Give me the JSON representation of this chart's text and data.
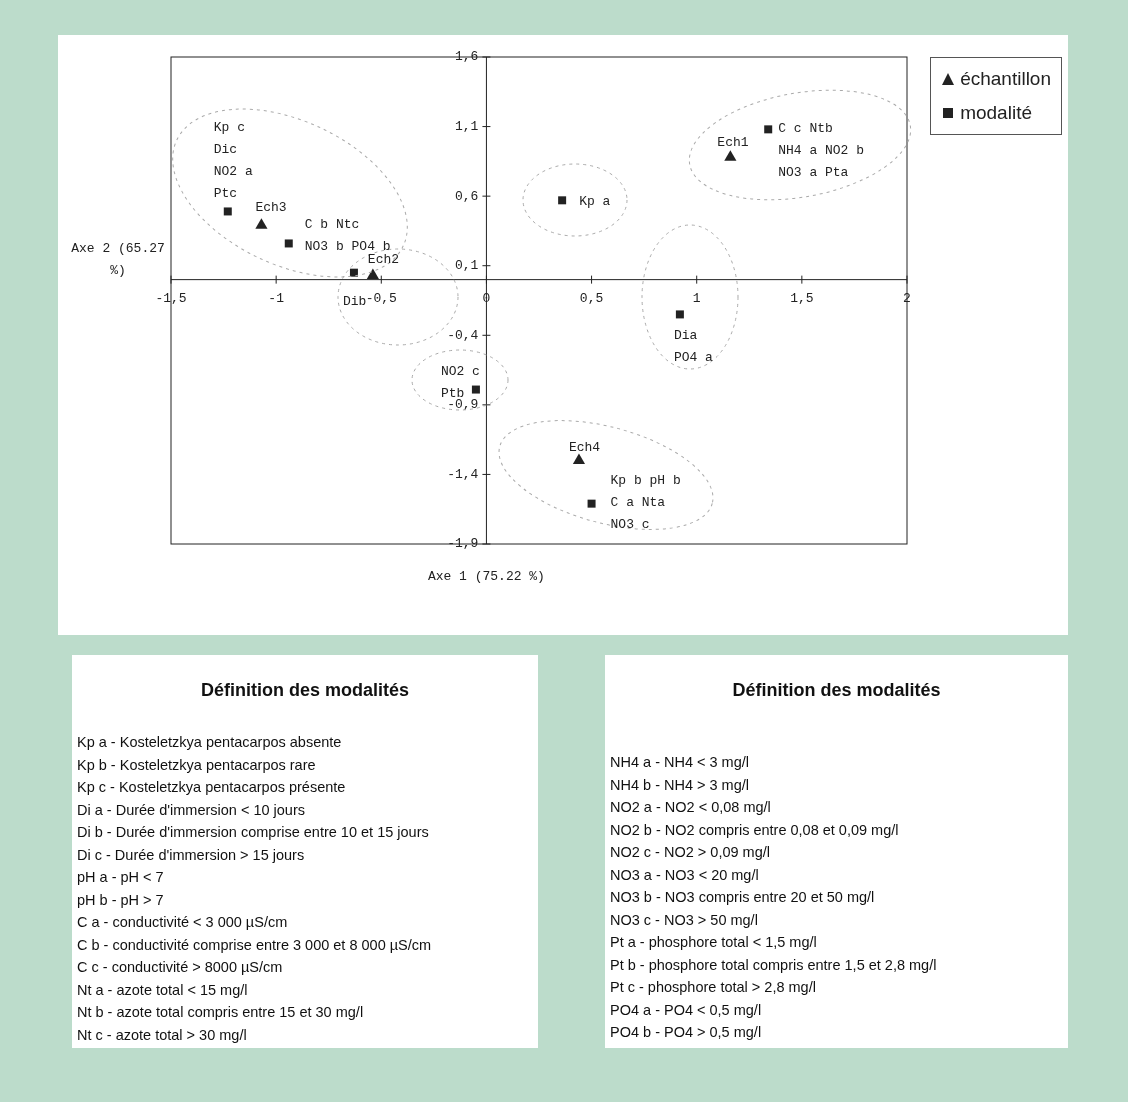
{
  "chart_data": [
    {
      "type": "scatter",
      "xlabel": "Axe 1 (75.22 %)",
      "ylabel": "Axe 2 (65.27 %)",
      "legend": "top right",
      "xlim": [
        -1.5,
        2
      ],
      "xticks": [
        {
          "value": -1.5,
          "label": "-1,5"
        },
        -1,
        {
          "value": -0.5,
          "label": "-0,5"
        },
        0,
        {
          "value": 0.5,
          "label": "0,5"
        },
        1,
        {
          "value": 1.5,
          "label": "1,5"
        },
        2
      ],
      "ylim": [
        -1.9,
        1.6
      ],
      "yticks": [
        {
          "value": 1.6,
          "label": "1,6"
        },
        {
          "value": 1.1,
          "label": "1,1"
        },
        {
          "value": 0.6,
          "label": "0,6"
        },
        {
          "value": 0.1,
          "label": "0,1"
        },
        {
          "value": -0.4,
          "label": "-0,4"
        },
        {
          "value": -0.9,
          "label": "-0,9"
        },
        {
          "value": -1.4,
          "label": "-1,4"
        },
        {
          "value": -1.9,
          "label": "-1,9"
        }
      ],
      "series": [
        {
          "name": "échantillon",
          "color": "#222222",
          "marker": "triangle",
          "x": [
            1.16,
            -0.54,
            -1.07,
            0.44
          ],
          "values": [
            0.88,
            0.03,
            0.39,
            -1.3
          ]
        },
        {
          "name": "modalité",
          "color": "#222222",
          "marker": "square",
          "x": [
            -1.23,
            -0.94,
            -0.63,
            0.36,
            1.34,
            0.92,
            -0.05,
            0.5
          ],
          "values": [
            0.49,
            0.26,
            0.05,
            0.57,
            1.08,
            -0.25,
            -0.79,
            -1.61
          ]
        }
      ],
      "annotations": [
        {
          "text": "Kp c\nDic\nNO2 a\nPtc",
          "x": -1.23,
          "y": 0.49
        },
        {
          "text": "Ech3",
          "x": -1.07,
          "y": 0.39
        },
        {
          "text": "C b  Ntc\nNO3 b  PO4 b",
          "x": -0.94,
          "y": 0.26
        },
        {
          "text": "Ech2",
          "x": -0.54,
          "y": 0.03
        },
        {
          "text": "Dib",
          "x": -0.63,
          "y": 0.05
        },
        {
          "text": "Kp a",
          "x": 0.36,
          "y": 0.57
        },
        {
          "text": "Ech1",
          "x": 1.16,
          "y": 0.88
        },
        {
          "text": "C c  Ntb\nNH4 a  NO2 b\nNO3 a  Pta",
          "x": 1.34,
          "y": 1.08
        },
        {
          "text": "Dia\nPO4 a",
          "x": 0.92,
          "y": -0.25
        },
        {
          "text": "NO2 c\nPtb",
          "x": -0.05,
          "y": -0.79
        },
        {
          "text": "Ech4",
          "x": 0.44,
          "y": -1.3
        },
        {
          "text": "Kp b  pH b\nC a  Nta\nNO3 c",
          "x": 0.5,
          "y": -1.61
        }
      ]
    },
    {
      "type": "other",
      "title": "Définition des modalités",
      "annotations": [
        "Kp a - Kosteletzkya pentacarpos absente",
        "Kp b - Kosteletzkya pentacarpos rare",
        "Kp c - Kosteletzkya pentacarpos présente",
        "Di a - Durée d'immersion < 10 jours",
        "Di b - Durée d'immersion comprise entre 10 et 15 jours",
        "Di c - Durée d'immersion > 15 jours",
        "pH a - pH < 7",
        "pH b - pH > 7",
        "C a - conductivité < 3 000 µS/cm",
        "C b - conductivité comprise entre 3 000 et 8 000 µS/cm",
        "C c - conductivité > 8000 µS/cm",
        "Nt a - azote total < 15 mg/l",
        "Nt b - azote total compris entre 15 et 30 mg/l",
        "Nt c - azote total > 30 mg/l"
      ]
    },
    {
      "type": "other",
      "title": "Définition des modalités",
      "annotations": [
        "NH4 a - NH4 < 3 mg/l",
        "NH4 b - NH4 > 3 mg/l",
        "NO2 a - NO2 < 0,08 mg/l",
        "NO2 b - NO2 compris entre 0,08 et 0,09 mg/l",
        "NO2 c - NO2 > 0,09 mg/l",
        "NO3 a - NO3 < 20 mg/l",
        "NO3 b - NO3 compris entre 20 et 50 mg/l",
        "NO3 c - NO3 > 50 mg/l",
        "Pt a - phosphore total < 1,5 mg/l",
        "Pt b - phosphore total compris entre 1,5 et 2,8 mg/l",
        "Pt c - phosphore total > 2,8 mg/l",
        "PO4 a - PO4 < 0,5 mg/l",
        "PO4 b - PO4 > 0,5 mg/l"
      ]
    }
  ]
}
